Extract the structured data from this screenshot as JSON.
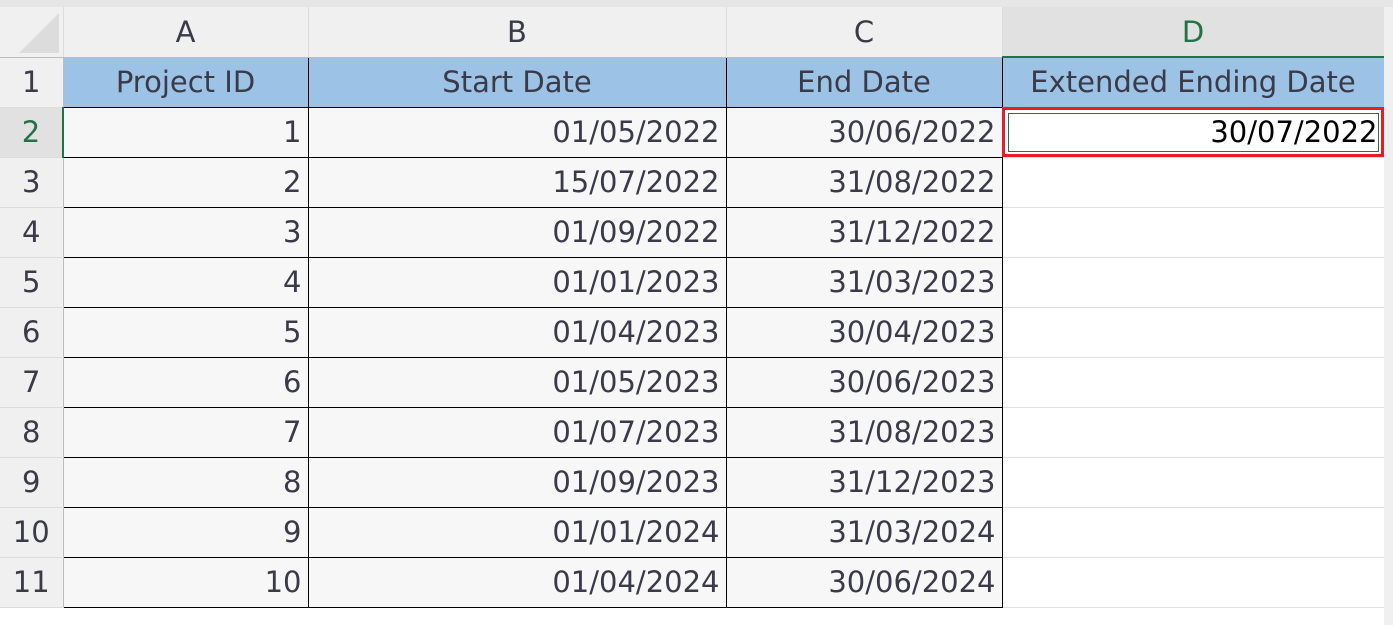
{
  "column_headers": [
    "A",
    "B",
    "C",
    "D"
  ],
  "selected_column": "D",
  "selected_row": "2",
  "header_row": [
    "Project ID",
    "Start Date",
    "End Date",
    "Extended Ending Date"
  ],
  "rows": [
    {
      "row": "2",
      "id": "1",
      "start": "01/05/2022",
      "end": "30/06/2022",
      "extended": "30/07/2022"
    },
    {
      "row": "3",
      "id": "2",
      "start": "15/07/2022",
      "end": "31/08/2022",
      "extended": ""
    },
    {
      "row": "4",
      "id": "3",
      "start": "01/09/2022",
      "end": "31/12/2022",
      "extended": ""
    },
    {
      "row": "5",
      "id": "4",
      "start": "01/01/2023",
      "end": "31/03/2023",
      "extended": ""
    },
    {
      "row": "6",
      "id": "5",
      "start": "01/04/2023",
      "end": "30/04/2023",
      "extended": ""
    },
    {
      "row": "7",
      "id": "6",
      "start": "01/05/2023",
      "end": "30/06/2023",
      "extended": ""
    },
    {
      "row": "8",
      "id": "7",
      "start": "01/07/2023",
      "end": "31/08/2023",
      "extended": ""
    },
    {
      "row": "9",
      "id": "8",
      "start": "01/09/2023",
      "end": "31/12/2023",
      "extended": ""
    },
    {
      "row": "10",
      "id": "9",
      "start": "01/01/2024",
      "end": "31/03/2024",
      "extended": ""
    },
    {
      "row": "11",
      "id": "10",
      "start": "01/04/2024",
      "end": "30/06/2024",
      "extended": ""
    }
  ],
  "colors": {
    "header_fill": "#9cc2e5",
    "highlight_border": "#e81c24",
    "selection": "#217346"
  }
}
